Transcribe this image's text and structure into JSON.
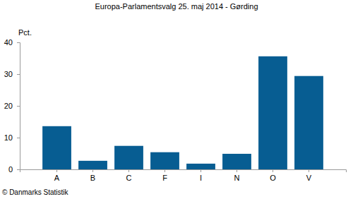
{
  "chart_data": {
    "type": "bar",
    "title": "Europa-Parlamentsvalg 25. maj 2014 - Gørding",
    "y_label": "Pct.",
    "annotations": [
      "© Danmarks Statistik"
    ],
    "categories": [
      "A",
      "B",
      "C",
      "F",
      "I",
      "N",
      "O",
      "V"
    ],
    "values": [
      13.6,
      2.7,
      7.4,
      5.4,
      1.8,
      4.9,
      35.6,
      29.4
    ],
    "color": "#075d92",
    "ylim": [
      0,
      40
    ],
    "yticks": [
      0,
      10,
      20,
      30,
      40
    ],
    "grid": false
  }
}
